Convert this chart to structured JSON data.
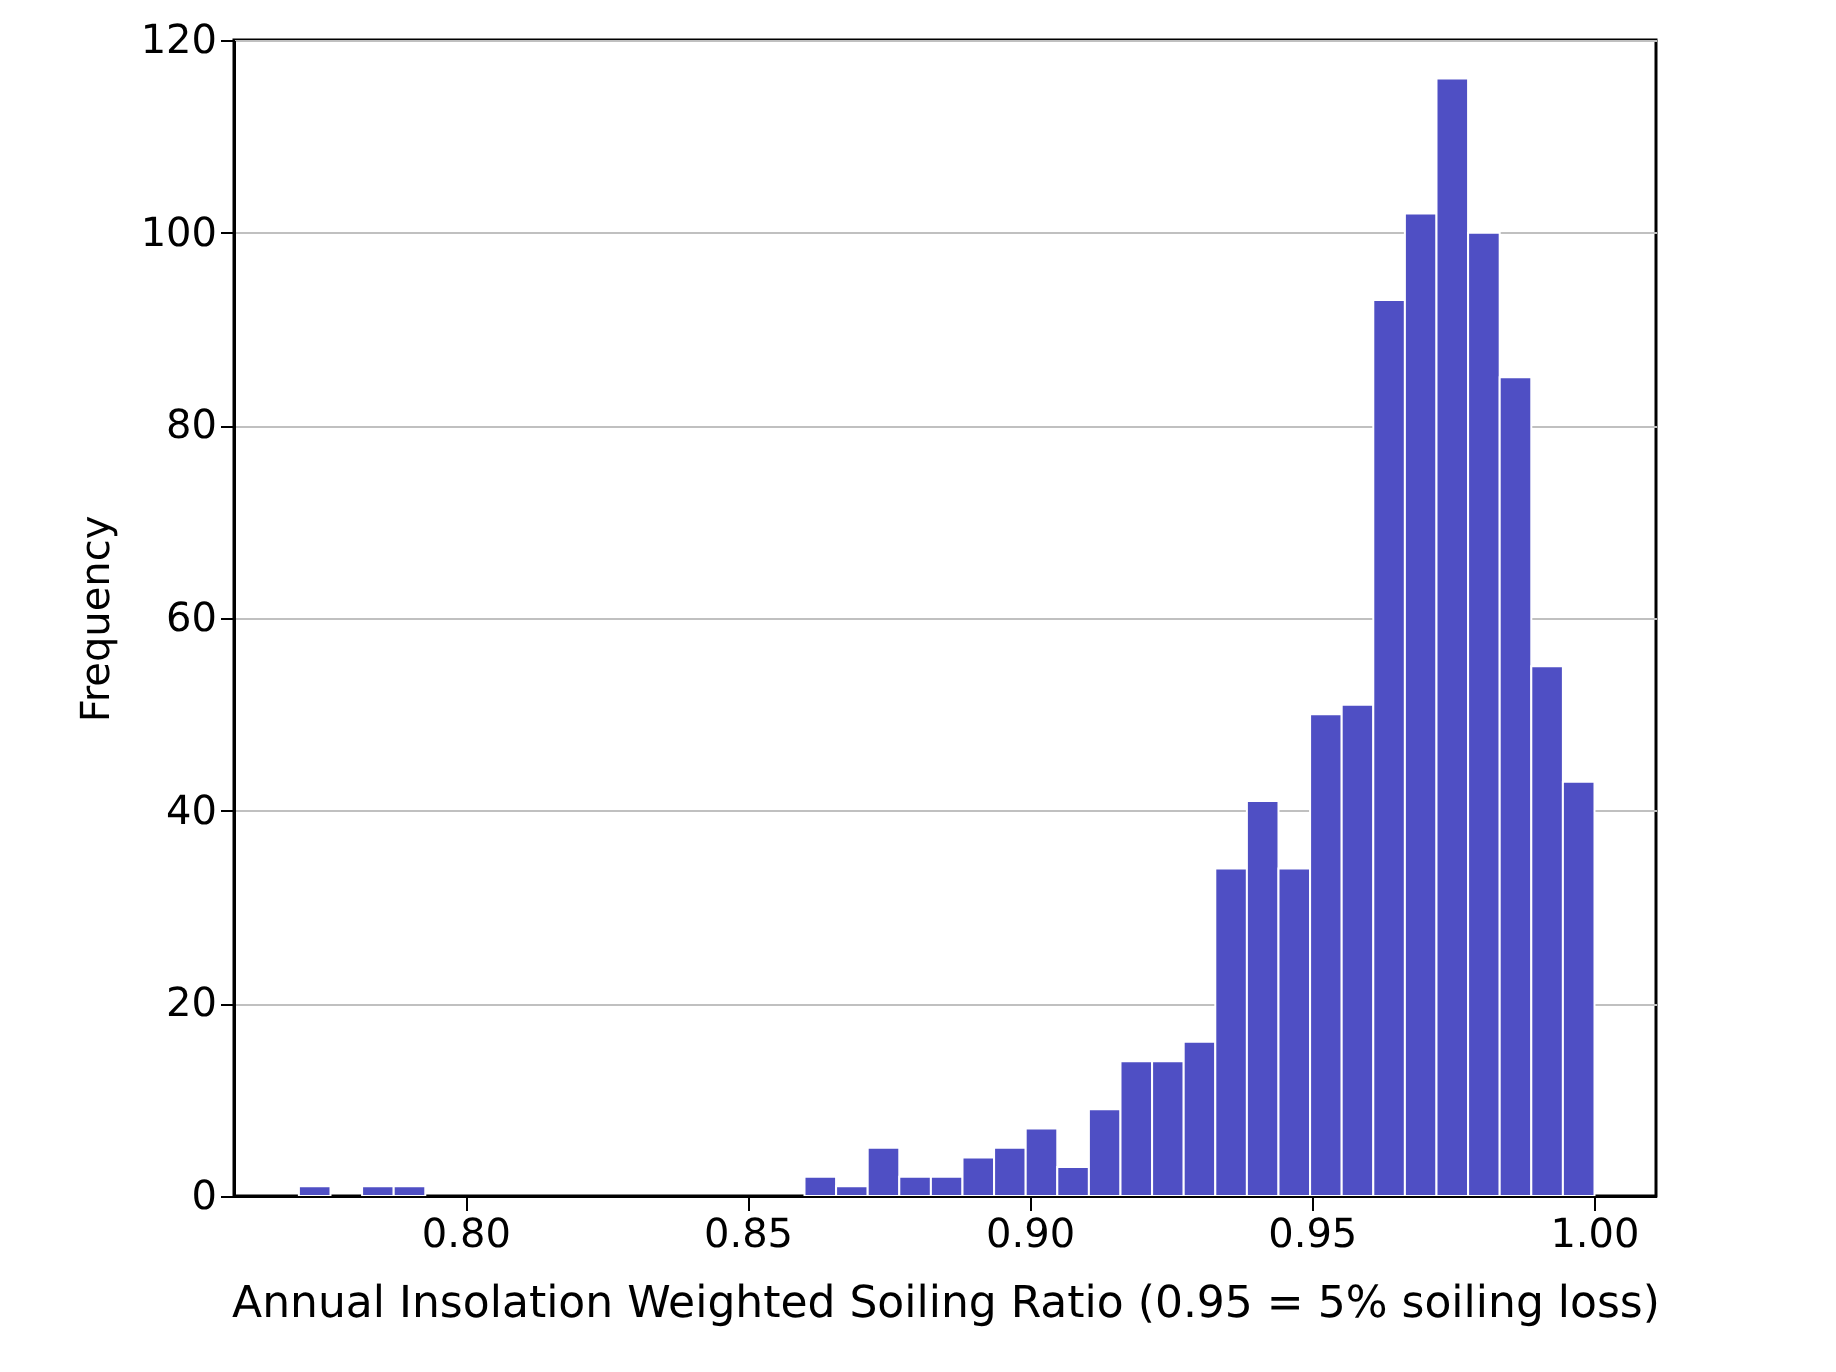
{
  "chart_data": {
    "type": "histogram",
    "xlabel": "Annual Insolation Weighted Soiling Ratio (0.95 = 5% soiling loss)",
    "ylabel": "Frequency",
    "bins": [
      0.7705,
      0.7761,
      0.7817,
      0.7873,
      0.7929,
      0.7985,
      0.8041,
      0.8097,
      0.8153,
      0.8209,
      0.8265,
      0.8321,
      0.8377,
      0.8433,
      0.8489,
      0.8545,
      0.8601,
      0.8657,
      0.8713,
      0.8769,
      0.8825,
      0.8881,
      0.8937,
      0.8993,
      0.9049,
      0.9105,
      0.9161,
      0.9217,
      0.9273,
      0.9329,
      0.9385,
      0.9441,
      0.9497,
      0.9553,
      0.9609,
      0.9665,
      0.9721,
      0.9777,
      0.9833,
      0.9889,
      0.9945,
      1.0001
    ],
    "values": [
      1,
      0,
      1,
      1,
      0,
      0,
      0,
      0,
      0,
      0,
      0,
      0,
      0,
      0,
      0,
      0,
      2,
      1,
      5,
      2,
      2,
      4,
      5,
      7,
      3,
      9,
      14,
      14,
      16,
      34,
      41,
      34,
      50,
      51,
      93,
      102,
      116,
      100,
      85,
      55,
      43
    ],
    "color": "#4f4fc4",
    "xlim": [
      0.759,
      1.011
    ],
    "xticks": [
      {
        "value": 0.8,
        "label": "0.80"
      },
      {
        "value": 0.85,
        "label": "0.85"
      },
      {
        "value": 0.9,
        "label": "0.90"
      },
      {
        "value": 0.95,
        "label": "0.95"
      },
      {
        "value": 1.0,
        "label": "1.00"
      }
    ],
    "ylim": [
      0,
      120
    ],
    "yticks": [
      0,
      20,
      40,
      60,
      80,
      100,
      120
    ],
    "grid": "y"
  }
}
